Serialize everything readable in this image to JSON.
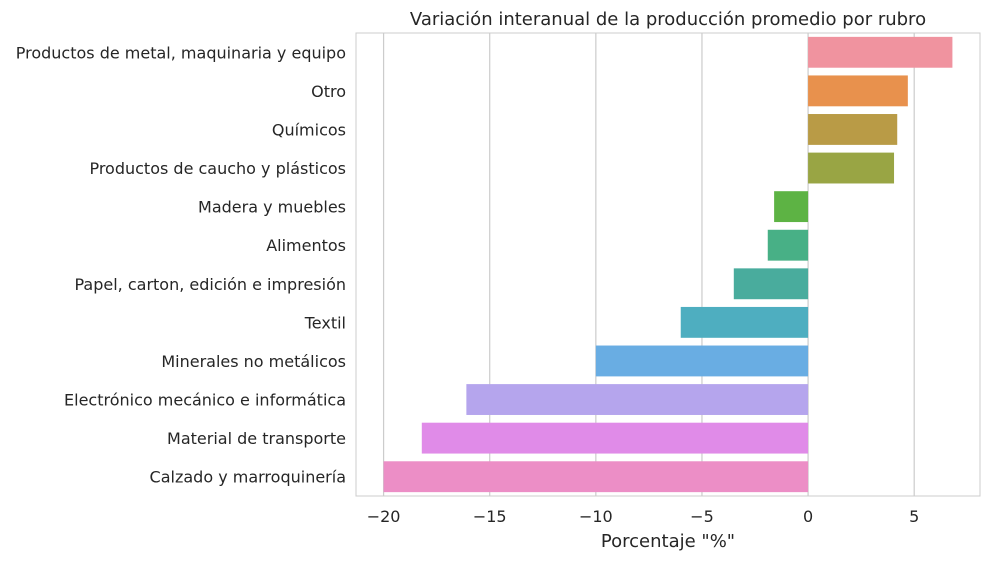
{
  "chart_data": {
    "type": "bar",
    "orientation": "horizontal",
    "title": "Variación interanual de la producción promedio por rubro",
    "xlabel": "Porcentaje \"%\"",
    "ylabel": "",
    "xlim": [
      -21.3,
      8.1
    ],
    "xticks": [
      -20,
      -15,
      -10,
      -5,
      0,
      5
    ],
    "xtick_labels": [
      "−20",
      "−15",
      "−10",
      "−5",
      "0",
      "5"
    ],
    "grid": "vertical",
    "categories": [
      "Productos de metal, maquinaria y equipo",
      "Otro",
      "Químicos",
      "Productos de caucho y plásticos",
      "Madera y muebles",
      "Alimentos",
      "Papel, carton, edición e impresión",
      "Textil",
      "Minerales no metálicos",
      "Electrónico mecánico e informática",
      "Material de transporte",
      "Calzado y marroquinería"
    ],
    "values": [
      6.8,
      4.7,
      4.2,
      4.05,
      -1.6,
      -1.9,
      -3.5,
      -6.0,
      -10.0,
      -16.1,
      -18.2,
      -20.0
    ],
    "colors": [
      "#f0939f",
      "#e8914d",
      "#b99b46",
      "#99a544",
      "#5db344",
      "#48b086",
      "#49ac9d",
      "#4eaec0",
      "#69ade3",
      "#b5a5ed",
      "#e08be8",
      "#ec8ec6"
    ]
  }
}
